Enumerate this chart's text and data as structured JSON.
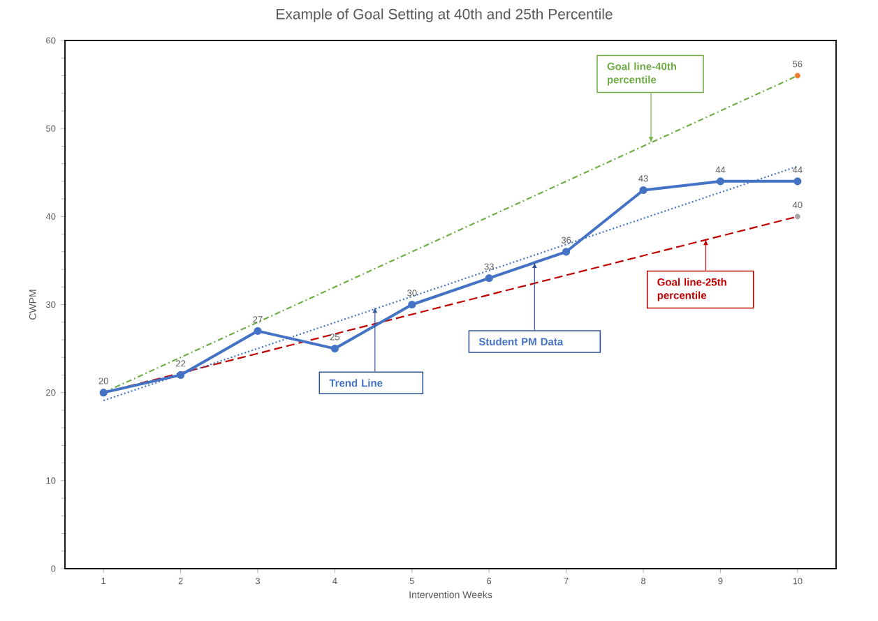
{
  "chart_data": {
    "type": "line",
    "title": "Example of Goal Setting at 40th and 25th Percentile",
    "xlabel": "Intervention Weeks",
    "ylabel": "CWPM",
    "xlim": [
      0.5,
      10.5
    ],
    "xticks": [
      1,
      2,
      3,
      4,
      5,
      6,
      7,
      8,
      9,
      10
    ],
    "ylim": [
      0,
      60
    ],
    "yticks": [
      0,
      10,
      20,
      30,
      40,
      50,
      60
    ],
    "series": [
      {
        "color": "#70ad47",
        "line_style": "dashdot",
        "marker": "none",
        "x": [
          1,
          10
        ],
        "values": [
          20,
          56
        ]
      },
      {
        "color": "#c00000",
        "line_style": "dashed",
        "marker": "none",
        "x": [
          1,
          10
        ],
        "values": [
          20,
          40
        ]
      },
      {
        "color": "#4472c4",
        "line_style": "dotted",
        "marker": "none",
        "x": [
          1,
          10
        ],
        "values": [
          19.1,
          45.7
        ]
      },
      {
        "color": "#4472c4",
        "line_style": "solid",
        "marker": "circle",
        "x": [
          1,
          2,
          3,
          4,
          5,
          6,
          7,
          8,
          9,
          10
        ],
        "values": [
          20,
          22,
          27,
          25,
          30,
          33,
          36,
          43,
          44,
          44
        ],
        "value_labels": [
          "20",
          "22",
          "27",
          "25",
          "30",
          "33",
          "36",
          "43",
          "44",
          "44"
        ]
      },
      {
        "type": "scatter",
        "color": "#ed7d31",
        "marker": "circle",
        "x": [
          10
        ],
        "values": [
          56
        ],
        "value_labels": [
          "56"
        ]
      },
      {
        "type": "scatter",
        "color": "#a5a5a5",
        "marker": "circle",
        "x": [
          10
        ],
        "values": [
          40
        ],
        "value_labels": [
          "40"
        ]
      }
    ],
    "annotations": [
      {
        "text": "Goal line-40th percentile",
        "x": 8.1,
        "y": 48.4
      },
      {
        "text": "Goal line-25th percentile",
        "x": 8.81,
        "y": 37.4
      },
      {
        "text": "Trend Line",
        "x": 4.52,
        "y": 29.7
      },
      {
        "text": "Student PM Data",
        "x": 6.59,
        "y": 34.8
      }
    ]
  }
}
